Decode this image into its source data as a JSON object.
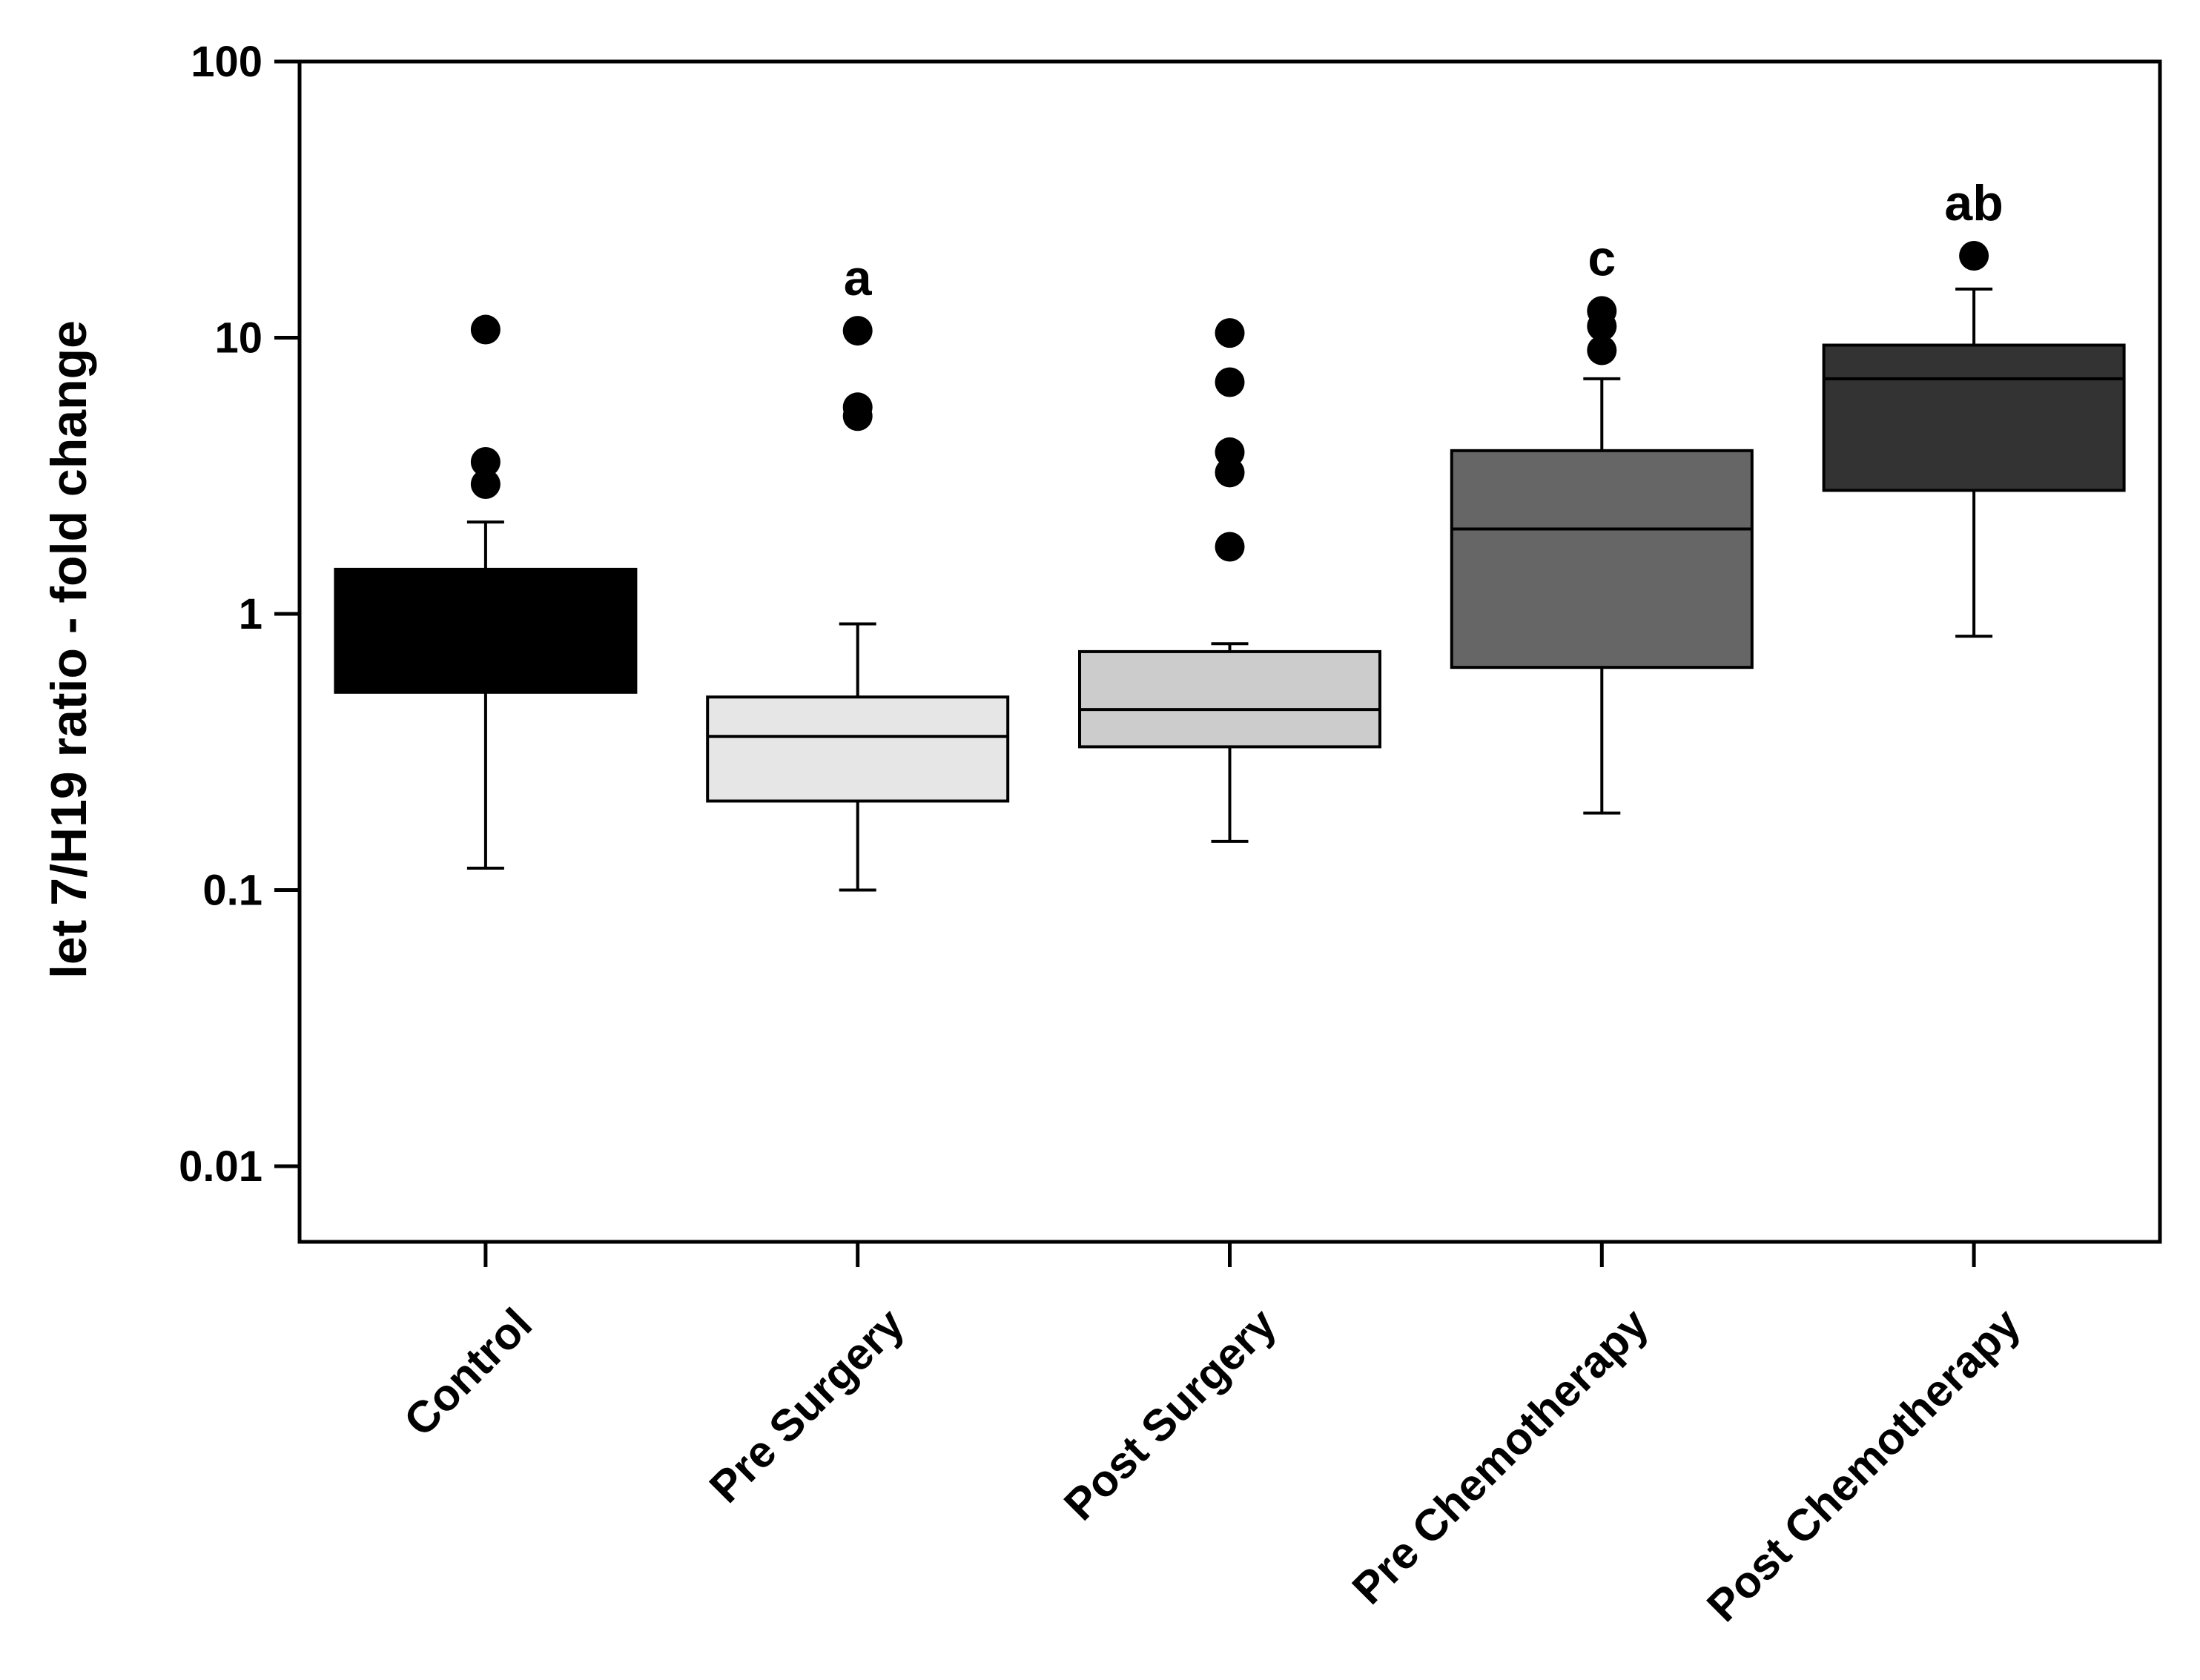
{
  "chart_data": {
    "type": "box",
    "title": "",
    "xlabel": "",
    "ylabel": "let 7/H19 ratio - fold change",
    "yscale": "log",
    "ylim": [
      0.005,
      100
    ],
    "yticks": [
      0.01,
      0.1,
      1,
      10,
      100
    ],
    "ytick_labels": [
      "0.01",
      "0.1",
      "1",
      "10",
      "100"
    ],
    "categories": [
      "Control",
      "Pre Surgery",
      "Post Surgery",
      "Pre Chemotherapy",
      "Post Chemotherapy"
    ],
    "boxes": [
      {
        "category": "Control",
        "whisker_low": 0.12,
        "q1": 0.52,
        "median": 1.0,
        "q3": 1.45,
        "whisker_high": 2.15,
        "outliers": [
          2.95,
          3.55,
          10.7
        ],
        "color": "#000000",
        "significance": ""
      },
      {
        "category": "Pre Surgery",
        "whisker_low": 0.1,
        "q1": 0.21,
        "median": 0.36,
        "q3": 0.5,
        "whisker_high": 0.92,
        "outliers": [
          5.2,
          5.6,
          10.6
        ],
        "color": "#e6e6e6",
        "significance": "a"
      },
      {
        "category": "Post Surgery",
        "whisker_low": 0.15,
        "q1": 0.33,
        "median": 0.45,
        "q3": 0.73,
        "whisker_high": 0.78,
        "outliers": [
          1.75,
          3.25,
          3.85,
          6.9,
          10.4
        ],
        "color": "#cccccc",
        "significance": ""
      },
      {
        "category": "Pre Chemotherapy",
        "whisker_low": 0.19,
        "q1": 0.64,
        "median": 2.03,
        "q3": 3.9,
        "whisker_high": 7.1,
        "outliers": [
          9.0,
          11.0,
          12.5
        ],
        "color": "#666666",
        "significance": "c"
      },
      {
        "category": "Post Chemotherapy",
        "whisker_low": 0.83,
        "q1": 2.8,
        "median": 7.1,
        "q3": 9.4,
        "whisker_high": 15.0,
        "outliers": [
          19.8
        ],
        "color": "#333333",
        "significance": "ab"
      }
    ],
    "grid": false,
    "legend": "none"
  }
}
